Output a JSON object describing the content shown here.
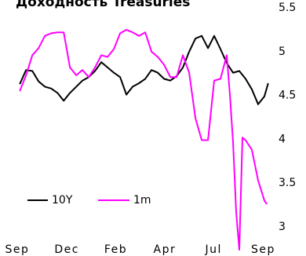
{
  "chart_data": {
    "type": "line",
    "title": "Доходность  Treasuries",
    "xlim": [
      -0.4,
      40.5
    ],
    "xticks": [
      {
        "value": -0.4,
        "label": "Sep"
      },
      {
        "value": 7.5,
        "label": "Dec"
      },
      {
        "value": 15.3,
        "label": "Feb"
      },
      {
        "value": 23.1,
        "label": "Apr"
      },
      {
        "value": 30.9,
        "label": "Jul"
      },
      {
        "value": 38.8,
        "label": "Sep"
      }
    ],
    "ylim": [
      3,
      5.5
    ],
    "yticks": [
      3,
      3.5,
      4,
      4.5,
      5,
      5.5
    ],
    "legend": "lower left",
    "series": [
      {
        "name": "10Y",
        "color": "#000000",
        "x": [
          0,
          1,
          2,
          3,
          4,
          5,
          6,
          7,
          8,
          9,
          10,
          11,
          12,
          13,
          14,
          15,
          16,
          17,
          18,
          19,
          20,
          21,
          22,
          23,
          24,
          25,
          26,
          27,
          28,
          29,
          30,
          31,
          32,
          33,
          34,
          35,
          36,
          37,
          38,
          39,
          39.6
        ],
        "values": [
          4.63,
          4.79,
          4.78,
          4.66,
          4.6,
          4.58,
          4.53,
          4.44,
          4.53,
          4.6,
          4.67,
          4.71,
          4.78,
          4.88,
          4.82,
          4.76,
          4.71,
          4.51,
          4.6,
          4.64,
          4.69,
          4.79,
          4.76,
          4.69,
          4.67,
          4.72,
          4.82,
          5.0,
          5.15,
          5.18,
          5.04,
          5.18,
          5.03,
          4.87,
          4.76,
          4.78,
          4.69,
          4.57,
          4.4,
          4.49,
          4.64
        ]
      },
      {
        "name": "1m",
        "color": "#ff00ff",
        "x": [
          0,
          1,
          2,
          3,
          4,
          5,
          6,
          7,
          8,
          9,
          10,
          11,
          12,
          13,
          14,
          15,
          16,
          17,
          18,
          19,
          20,
          21,
          22,
          23,
          24,
          25,
          26,
          27,
          28,
          29,
          30,
          31,
          32,
          33,
          33.5,
          34,
          34.5,
          35,
          35.5,
          36,
          37,
          38,
          39,
          39.4
        ],
        "values": [
          4.55,
          4.73,
          4.96,
          5.04,
          5.18,
          5.21,
          5.22,
          5.22,
          4.82,
          4.73,
          4.79,
          4.71,
          4.82,
          4.96,
          4.94,
          5.03,
          5.21,
          5.25,
          5.22,
          5.18,
          5.22,
          5.0,
          4.94,
          4.85,
          4.71,
          4.71,
          4.96,
          4.76,
          4.24,
          3.99,
          3.99,
          4.67,
          4.69,
          4.96,
          4.51,
          3.97,
          3.17,
          2.74,
          4.02,
          3.99,
          3.88,
          3.53,
          3.3,
          3.26
        ]
      }
    ]
  }
}
